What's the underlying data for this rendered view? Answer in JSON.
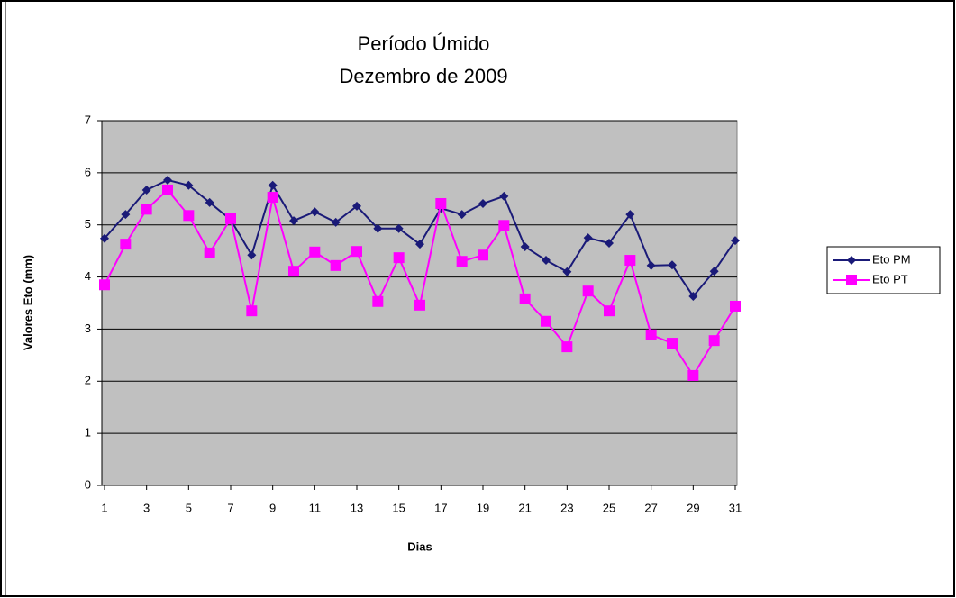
{
  "chart_data": {
    "type": "line",
    "title": "Período Úmido",
    "subtitle": "Dezembro de 2009",
    "x_label": "Dias",
    "y_label": "Valores Eto (mm)",
    "x": [
      1,
      2,
      3,
      4,
      5,
      6,
      7,
      8,
      9,
      10,
      11,
      12,
      13,
      14,
      15,
      16,
      17,
      18,
      19,
      20,
      21,
      22,
      23,
      24,
      25,
      26,
      27,
      28,
      29,
      30,
      31
    ],
    "series": [
      {
        "name": "Eto PM",
        "color": "#1a1a78",
        "marker": "diamond",
        "values": [
          4.74,
          5.2,
          5.67,
          5.86,
          5.76,
          5.43,
          5.1,
          4.42,
          5.76,
          5.08,
          5.25,
          5.05,
          5.36,
          4.93,
          4.93,
          4.63,
          5.32,
          5.2,
          5.41,
          5.55,
          4.58,
          4.32,
          4.1,
          4.75,
          4.65,
          5.2,
          4.22,
          4.23,
          3.63,
          4.11,
          4.7
        ]
      },
      {
        "name": "Eto PT",
        "color": "#ff00ff",
        "marker": "square",
        "values": [
          3.85,
          4.63,
          5.3,
          5.67,
          5.18,
          4.46,
          5.12,
          3.35,
          5.53,
          4.11,
          4.48,
          4.22,
          4.49,
          3.53,
          4.37,
          3.46,
          5.41,
          4.3,
          4.42,
          4.99,
          3.58,
          3.15,
          2.66,
          3.73,
          3.35,
          4.32,
          2.89,
          2.73,
          2.11,
          2.78,
          3.44
        ]
      }
    ],
    "xlim": [
      1,
      31
    ],
    "xticks": [
      1,
      3,
      5,
      7,
      9,
      11,
      13,
      15,
      17,
      19,
      21,
      23,
      25,
      27,
      29,
      31
    ],
    "ylim": [
      0,
      7
    ],
    "yticks": [
      0,
      1,
      2,
      3,
      4,
      5,
      6,
      7
    ],
    "grid": true,
    "plot_background": "#c0c0c0",
    "legend": "right"
  }
}
